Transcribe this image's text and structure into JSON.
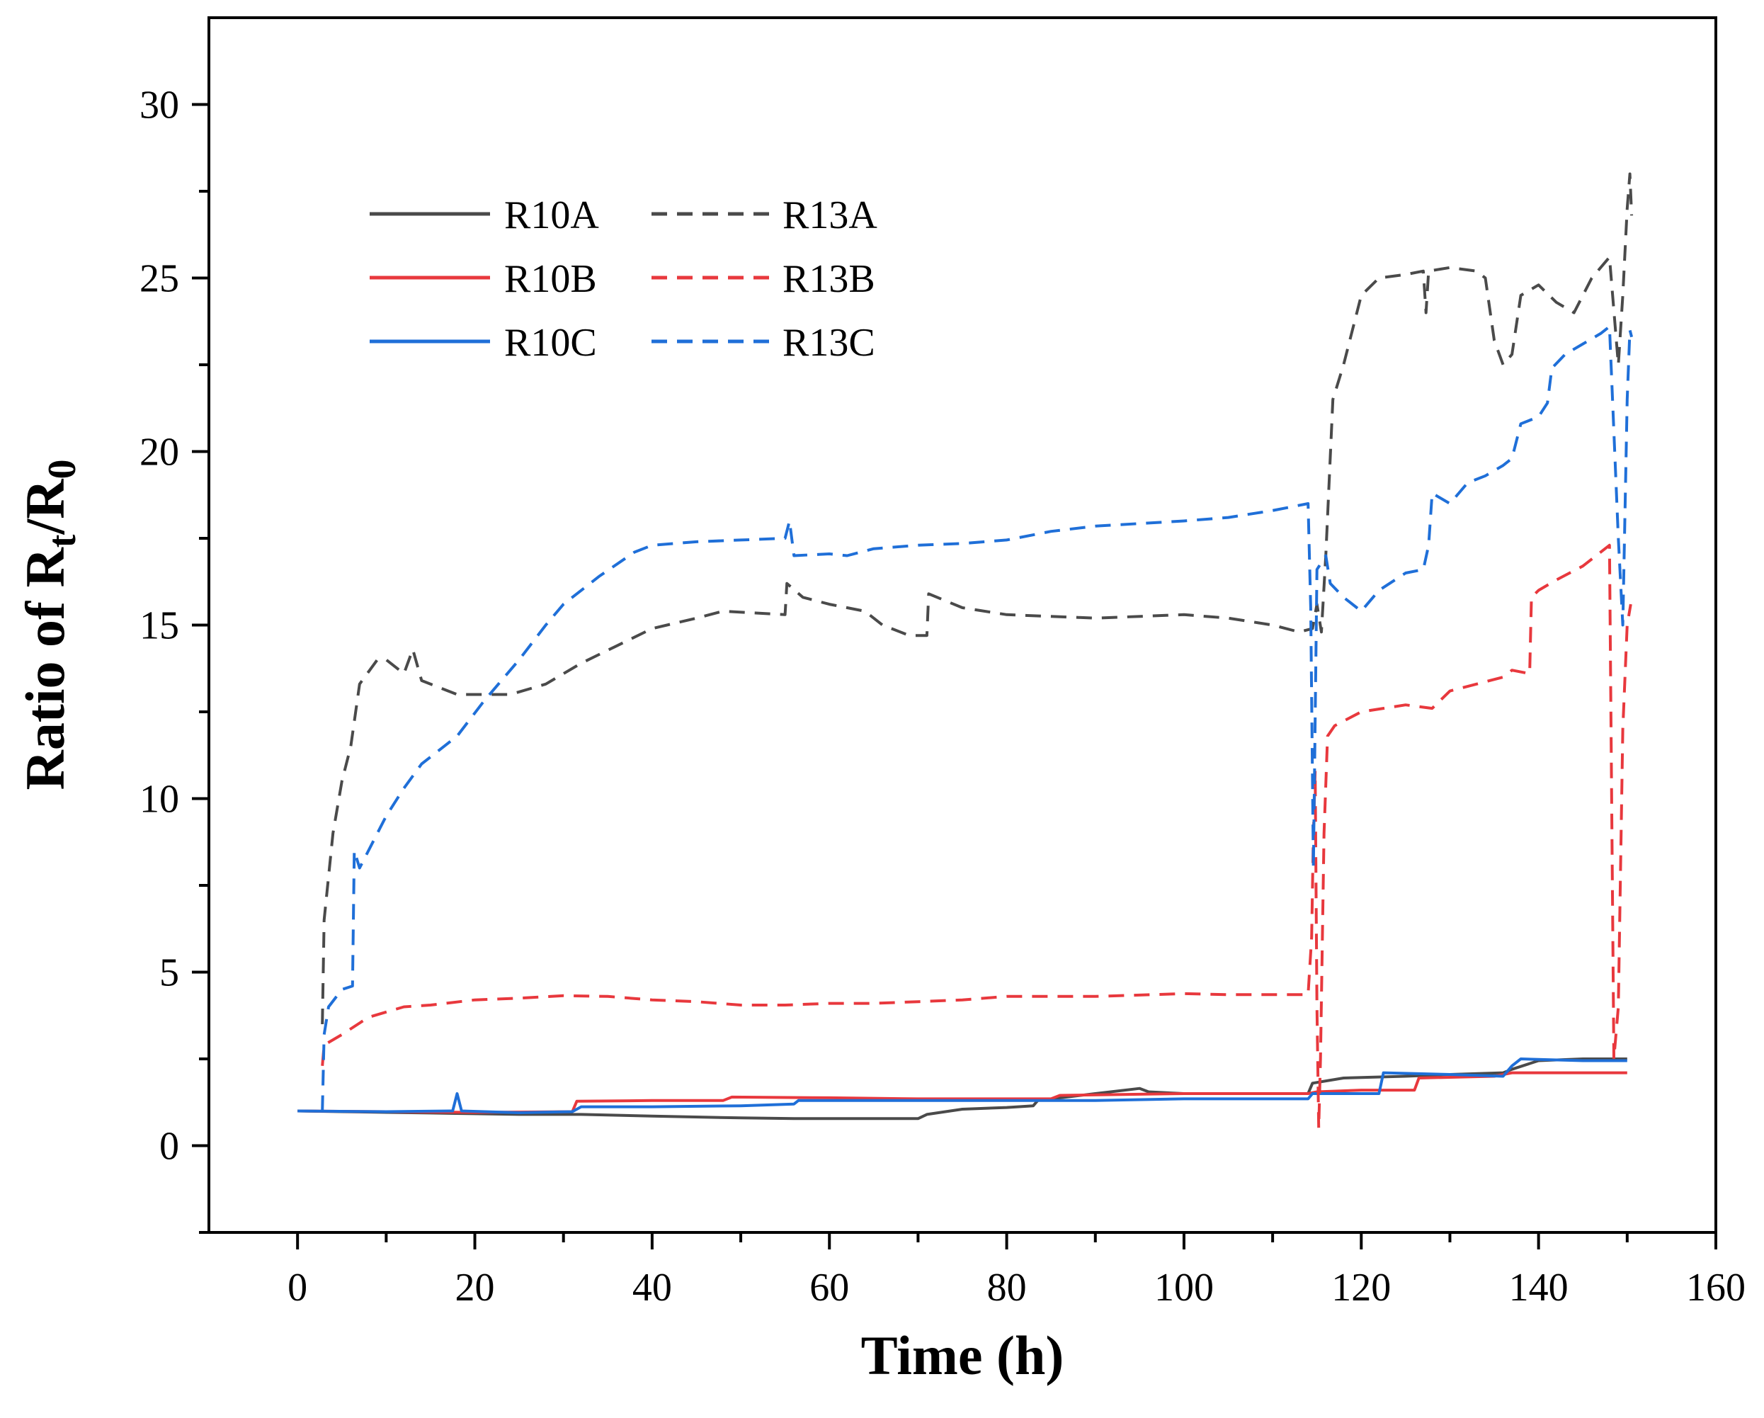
{
  "chart_data": {
    "type": "line",
    "title": "",
    "xlabel": "Time (h)",
    "ylabel": {
      "prefix": "Ratio of R",
      "sub1": "t",
      "mid": "/R",
      "sub2": "0"
    },
    "xlim": [
      -10,
      160
    ],
    "ylim": [
      -2.5,
      32.5
    ],
    "xticks": [
      0,
      20,
      40,
      60,
      80,
      100,
      120,
      140,
      160
    ],
    "yticks": [
      0,
      5,
      10,
      15,
      20,
      25,
      30
    ],
    "legend_position": "top-left",
    "series": [
      {
        "name": "R10A",
        "color": "#4a4a4a",
        "style": "solid",
        "points": [
          [
            0,
            1.0
          ],
          [
            5,
            0.98
          ],
          [
            10,
            0.96
          ],
          [
            15,
            0.94
          ],
          [
            20,
            0.92
          ],
          [
            25,
            0.9
          ],
          [
            30,
            0.9
          ],
          [
            32,
            0.9
          ],
          [
            40,
            0.85
          ],
          [
            50,
            0.8
          ],
          [
            56,
            0.78
          ],
          [
            60,
            0.78
          ],
          [
            70,
            0.78
          ],
          [
            71,
            0.9
          ],
          [
            75,
            1.05
          ],
          [
            80,
            1.1
          ],
          [
            83,
            1.15
          ],
          [
            83.5,
            1.3
          ],
          [
            90,
            1.5
          ],
          [
            95,
            1.65
          ],
          [
            96,
            1.55
          ],
          [
            100,
            1.5
          ],
          [
            114,
            1.5
          ],
          [
            114.5,
            1.8
          ],
          [
            118,
            1.95
          ],
          [
            125,
            2.0
          ],
          [
            130,
            2.05
          ],
          [
            136,
            2.1
          ],
          [
            137,
            2.2
          ],
          [
            140,
            2.45
          ],
          [
            145,
            2.5
          ],
          [
            150,
            2.5
          ]
        ]
      },
      {
        "name": "R10B",
        "color": "#e8383d",
        "style": "solid",
        "points": [
          [
            0,
            1.0
          ],
          [
            10,
            0.98
          ],
          [
            20,
            0.96
          ],
          [
            31,
            0.98
          ],
          [
            31.5,
            1.28
          ],
          [
            40,
            1.3
          ],
          [
            48,
            1.3
          ],
          [
            49,
            1.4
          ],
          [
            60,
            1.38
          ],
          [
            70,
            1.35
          ],
          [
            80,
            1.35
          ],
          [
            85,
            1.35
          ],
          [
            86,
            1.45
          ],
          [
            100,
            1.5
          ],
          [
            114,
            1.5
          ],
          [
            115,
            1.55
          ],
          [
            120,
            1.6
          ],
          [
            126,
            1.6
          ],
          [
            126.5,
            1.95
          ],
          [
            135,
            2.0
          ],
          [
            137,
            2.1
          ],
          [
            145,
            2.1
          ],
          [
            150,
            2.1
          ]
        ]
      },
      {
        "name": "R10C",
        "color": "#1f6fd8",
        "style": "solid",
        "points": [
          [
            0,
            1.0
          ],
          [
            10,
            0.98
          ],
          [
            17.5,
            1.0
          ],
          [
            18,
            1.5
          ],
          [
            18.5,
            1.0
          ],
          [
            25,
            0.95
          ],
          [
            31,
            0.98
          ],
          [
            32,
            1.12
          ],
          [
            40,
            1.12
          ],
          [
            50,
            1.15
          ],
          [
            56,
            1.2
          ],
          [
            56.5,
            1.3
          ],
          [
            70,
            1.3
          ],
          [
            80,
            1.3
          ],
          [
            90,
            1.3
          ],
          [
            100,
            1.35
          ],
          [
            114,
            1.35
          ],
          [
            114.5,
            1.5
          ],
          [
            122,
            1.5
          ],
          [
            122.5,
            2.1
          ],
          [
            130,
            2.05
          ],
          [
            136,
            2.0
          ],
          [
            137,
            2.3
          ],
          [
            138,
            2.5
          ],
          [
            145,
            2.45
          ],
          [
            150,
            2.45
          ]
        ]
      },
      {
        "name": "R13A",
        "color": "#4a4a4a",
        "style": "dashed",
        "points": [
          [
            2.8,
            3.5
          ],
          [
            3,
            6.5
          ],
          [
            4,
            9
          ],
          [
            5,
            10.5
          ],
          [
            6,
            11.5
          ],
          [
            7,
            13.3
          ],
          [
            9,
            14
          ],
          [
            10,
            14
          ],
          [
            12,
            13.6
          ],
          [
            13,
            14.3
          ],
          [
            14,
            13.4
          ],
          [
            17,
            13.1
          ],
          [
            18,
            13.0
          ],
          [
            21,
            13.0
          ],
          [
            24,
            13.0
          ],
          [
            28,
            13.3
          ],
          [
            32,
            13.9
          ],
          [
            36,
            14.4
          ],
          [
            40,
            14.9
          ],
          [
            45,
            15.2
          ],
          [
            48,
            15.4
          ],
          [
            55,
            15.3
          ],
          [
            55.2,
            16.2
          ],
          [
            57,
            15.8
          ],
          [
            60,
            15.6
          ],
          [
            64,
            15.4
          ],
          [
            66,
            15.0
          ],
          [
            69,
            14.7
          ],
          [
            71,
            14.7
          ],
          [
            71.2,
            15.9
          ],
          [
            75,
            15.5
          ],
          [
            80,
            15.3
          ],
          [
            90,
            15.2
          ],
          [
            100,
            15.3
          ],
          [
            105,
            15.2
          ],
          [
            110,
            15.0
          ],
          [
            113,
            14.8
          ],
          [
            114.5,
            14.9
          ],
          [
            115,
            15.6
          ],
          [
            115.5,
            14.8
          ],
          [
            116,
            17
          ],
          [
            116.8,
            21.5
          ],
          [
            118,
            22.5
          ],
          [
            120,
            24.5
          ],
          [
            122,
            25.0
          ],
          [
            125,
            25.1
          ],
          [
            127,
            25.2
          ],
          [
            127.3,
            24.0
          ],
          [
            127.6,
            25.2
          ],
          [
            130,
            25.3
          ],
          [
            133,
            25.2
          ],
          [
            134,
            25.0
          ],
          [
            135,
            23.2
          ],
          [
            136,
            22.5
          ],
          [
            137,
            22.8
          ],
          [
            138,
            24.5
          ],
          [
            140,
            24.8
          ],
          [
            142,
            24.3
          ],
          [
            144,
            24.0
          ],
          [
            146,
            25.0
          ],
          [
            148,
            25.6
          ],
          [
            149,
            22.5
          ],
          [
            149.5,
            24.5
          ],
          [
            150,
            27
          ],
          [
            150.3,
            28
          ],
          [
            150.5,
            26.8
          ]
        ]
      },
      {
        "name": "R13B",
        "color": "#e8383d",
        "style": "dashed",
        "points": [
          [
            2.8,
            2.3
          ],
          [
            3,
            2.9
          ],
          [
            5,
            3.2
          ],
          [
            8,
            3.7
          ],
          [
            12,
            4.0
          ],
          [
            15,
            4.05
          ],
          [
            20,
            4.2
          ],
          [
            25,
            4.25
          ],
          [
            30,
            4.32
          ],
          [
            35,
            4.3
          ],
          [
            40,
            4.2
          ],
          [
            45,
            4.15
          ],
          [
            50,
            4.05
          ],
          [
            55,
            4.05
          ],
          [
            60,
            4.1
          ],
          [
            65,
            4.1
          ],
          [
            70,
            4.15
          ],
          [
            75,
            4.2
          ],
          [
            80,
            4.3
          ],
          [
            90,
            4.3
          ],
          [
            100,
            4.38
          ],
          [
            105,
            4.35
          ],
          [
            110,
            4.35
          ],
          [
            114,
            4.35
          ],
          [
            114.4,
            6
          ],
          [
            114.6,
            9
          ],
          [
            114.8,
            10.8
          ],
          [
            115,
            4
          ],
          [
            115.2,
            0.5
          ],
          [
            115.4,
            2.5
          ],
          [
            115.8,
            9
          ],
          [
            116.2,
            11.8
          ],
          [
            117,
            12.1
          ],
          [
            120,
            12.5
          ],
          [
            125,
            12.7
          ],
          [
            128,
            12.6
          ],
          [
            130,
            13.1
          ],
          [
            133,
            13.3
          ],
          [
            136,
            13.5
          ],
          [
            137,
            13.7
          ],
          [
            139,
            13.6
          ],
          [
            139.2,
            15.8
          ],
          [
            140,
            16.0
          ],
          [
            142,
            16.3
          ],
          [
            145,
            16.7
          ],
          [
            148,
            17.3
          ],
          [
            148.5,
            2.5
          ],
          [
            149,
            4
          ],
          [
            149.5,
            12
          ],
          [
            150,
            15
          ],
          [
            150.4,
            15.6
          ]
        ]
      },
      {
        "name": "R13C",
        "color": "#1f6fd8",
        "style": "dashed",
        "points": [
          [
            2.8,
            1.0
          ],
          [
            3,
            3.2
          ],
          [
            3.5,
            4.0
          ],
          [
            5,
            4.5
          ],
          [
            6.2,
            4.6
          ],
          [
            6.4,
            8.5
          ],
          [
            7,
            8.0
          ],
          [
            10,
            9.5
          ],
          [
            12,
            10.3
          ],
          [
            14,
            11.0
          ],
          [
            18,
            11.8
          ],
          [
            21,
            12.8
          ],
          [
            25,
            14.0
          ],
          [
            28,
            15.0
          ],
          [
            30,
            15.6
          ],
          [
            34,
            16.4
          ],
          [
            38,
            17.1
          ],
          [
            40,
            17.3
          ],
          [
            45,
            17.4
          ],
          [
            50,
            17.45
          ],
          [
            55,
            17.5
          ],
          [
            55.5,
            18.0
          ],
          [
            56,
            17.0
          ],
          [
            60,
            17.05
          ],
          [
            62,
            17.0
          ],
          [
            65,
            17.2
          ],
          [
            70,
            17.3
          ],
          [
            75,
            17.35
          ],
          [
            80,
            17.45
          ],
          [
            85,
            17.7
          ],
          [
            90,
            17.85
          ],
          [
            100,
            18.0
          ],
          [
            105,
            18.1
          ],
          [
            110,
            18.3
          ],
          [
            114,
            18.5
          ],
          [
            114.3,
            15.5
          ],
          [
            114.6,
            8
          ],
          [
            115,
            16.6
          ],
          [
            116,
            17.0
          ],
          [
            116.5,
            16.2
          ],
          [
            118,
            15.8
          ],
          [
            120,
            15.4
          ],
          [
            122,
            16.0
          ],
          [
            125,
            16.5
          ],
          [
            127,
            16.6
          ],
          [
            127.6,
            17.3
          ],
          [
            128,
            18.8
          ],
          [
            130,
            18.5
          ],
          [
            132,
            19.1
          ],
          [
            134,
            19.3
          ],
          [
            136,
            19.6
          ],
          [
            137,
            19.8
          ],
          [
            138,
            20.8
          ],
          [
            140,
            21.0
          ],
          [
            141,
            21.4
          ],
          [
            141.5,
            22.4
          ],
          [
            143,
            22.8
          ],
          [
            145,
            23.1
          ],
          [
            147,
            23.4
          ],
          [
            148,
            23.6
          ],
          [
            149,
            17.5
          ],
          [
            149.5,
            15.0
          ],
          [
            150,
            21.5
          ],
          [
            150.3,
            23.5
          ],
          [
            150.5,
            23.3
          ]
        ]
      }
    ]
  }
}
